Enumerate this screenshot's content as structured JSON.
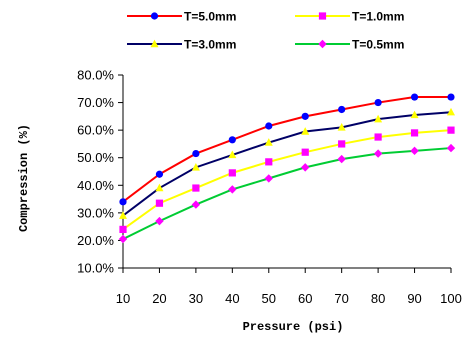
{
  "chart_data": {
    "type": "line",
    "title": "",
    "xlabel": "Pressure (psi)",
    "ylabel": "Compression (%)",
    "x": [
      10,
      20,
      30,
      40,
      50,
      60,
      70,
      80,
      90,
      100
    ],
    "xlim": [
      10,
      100
    ],
    "ylim": [
      10,
      80
    ],
    "ytick_labels": [
      "10.0%",
      "20.0%",
      "30.0%",
      "40.0%",
      "50.0%",
      "60.0%",
      "70.0%",
      "80.0%"
    ],
    "xtick_labels": [
      "10",
      "20",
      "30",
      "40",
      "50",
      "60",
      "70",
      "80",
      "90",
      "100"
    ],
    "grid": false,
    "legend_position": "top",
    "series": [
      {
        "name": "T=5.0mm",
        "color": "#ff0000",
        "marker": "circle",
        "marker_color": "#0000ff",
        "values": [
          34.0,
          44.0,
          51.5,
          56.5,
          61.5,
          65.0,
          67.5,
          70.0,
          72.0,
          72.0
        ]
      },
      {
        "name": "T=1.0mm",
        "color": "#ffff00",
        "marker": "square",
        "marker_color": "#ff00ff",
        "values": [
          24.0,
          33.5,
          39.0,
          44.5,
          48.5,
          52.0,
          55.0,
          57.5,
          59.0,
          60.0
        ]
      },
      {
        "name": "T=3.0mm",
        "color": "#000066",
        "marker": "triangle",
        "marker_color": "#ffff00",
        "values": [
          29.0,
          39.0,
          46.5,
          51.0,
          55.5,
          59.5,
          61.0,
          64.0,
          65.5,
          66.5
        ]
      },
      {
        "name": "T=0.5mm",
        "color": "#00cc33",
        "marker": "diamond",
        "marker_color": "#ff00ff",
        "values": [
          20.5,
          27.0,
          33.0,
          38.5,
          42.5,
          46.5,
          49.5,
          51.5,
          52.5,
          53.5
        ]
      }
    ]
  }
}
